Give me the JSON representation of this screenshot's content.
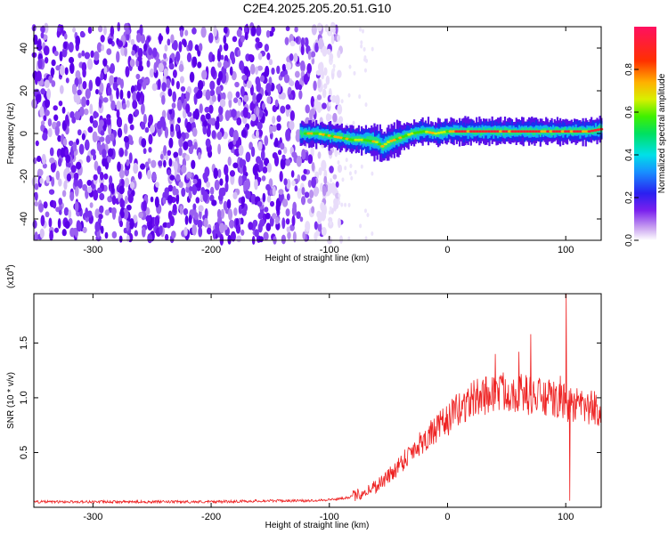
{
  "title": "C2E4.2025.205.20.51.G10",
  "chart_data": [
    {
      "type": "heatmap",
      "xlabel": "Height of straight line (km)",
      "ylabel": "Frequency (Hz)",
      "xlim": [
        -350,
        130
      ],
      "ylim": [
        -50,
        50
      ],
      "x_ticks": [
        -300,
        -200,
        -100,
        0,
        100
      ],
      "y_ticks": [
        -40,
        -20,
        0,
        20,
        40
      ],
      "colorbar": {
        "label": "Normalized spectral amplitude",
        "range": [
          0,
          1
        ],
        "ticks": [
          0.0,
          0.2,
          0.4,
          0.6,
          0.8
        ]
      },
      "ridge": {
        "x": [
          -125,
          -110,
          -100,
          -90,
          -80,
          -70,
          -60,
          -55,
          -50,
          -40,
          -30,
          -20,
          -10,
          0,
          20,
          40,
          60,
          80,
          100,
          120,
          130
        ],
        "frequency": [
          0,
          0,
          -1,
          -2,
          -3,
          -3,
          -4,
          -6,
          -4,
          -2,
          0,
          1,
          0,
          1,
          1,
          1,
          1,
          1,
          1,
          1,
          2
        ]
      },
      "noise_region": {
        "x_start": -350,
        "x_end": -100
      }
    },
    {
      "type": "line",
      "xlabel": "Height of straight line (km)",
      "ylabel": "SNR (10 * v/v)",
      "y_multiplier_label": "(x10",
      "y_multiplier_exp": "4",
      "y_multiplier_close": ")",
      "xlim": [
        -350,
        130
      ],
      "ylim": [
        0,
        1.95
      ],
      "x_ticks": [
        -300,
        -200,
        -100,
        0,
        100
      ],
      "y_ticks": [
        0.5,
        1.0,
        1.5
      ],
      "color": "#ee2222",
      "series": [
        {
          "x": [
            -350,
            -300,
            -250,
            -200,
            -150,
            -120,
            -100,
            -90,
            -80,
            -70,
            -60,
            -50,
            -40,
            -30,
            -20,
            -10,
            0,
            10,
            20,
            30,
            40,
            50,
            60,
            70,
            80,
            90,
            100,
            110,
            120,
            130
          ],
          "values": [
            0.05,
            0.05,
            0.05,
            0.05,
            0.06,
            0.06,
            0.07,
            0.08,
            0.1,
            0.14,
            0.2,
            0.28,
            0.4,
            0.52,
            0.62,
            0.7,
            0.8,
            0.9,
            0.98,
            1.02,
            1.05,
            1.06,
            1.05,
            1.02,
            1.0,
            0.98,
            0.95,
            0.92,
            0.9,
            0.9
          ]
        }
      ]
    }
  ]
}
